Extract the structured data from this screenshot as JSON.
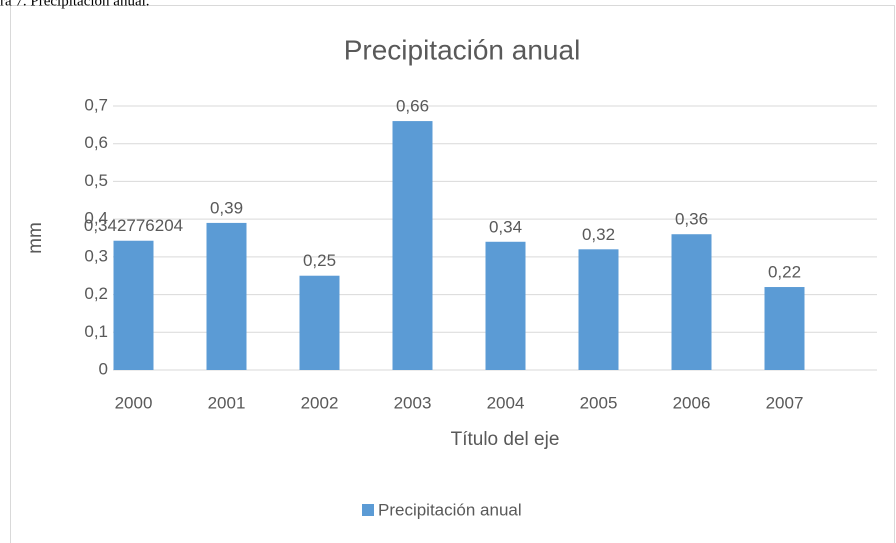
{
  "caption": "ra 7. Precipitación anual.",
  "chart_data": {
    "type": "bar",
    "title": "Precipitación anual",
    "x_label": "Título del eje",
    "y_label": "mm",
    "categories": [
      "2000",
      "2001",
      "2002",
      "2003",
      "2004",
      "2005",
      "2006",
      "2007"
    ],
    "series": [
      {
        "name": "Precipitación anual",
        "color": "#5b9bd5",
        "values": [
          0.342776204,
          0.39,
          0.25,
          0.66,
          0.34,
          0.32,
          0.36,
          0.22
        ],
        "value_labels": [
          "0,342776204",
          "0,39",
          "0,25",
          "0,66",
          "0,34",
          "0,32",
          "0,36",
          "0,22"
        ]
      }
    ],
    "ylim": [
      0,
      0.7
    ],
    "yticks": [
      0,
      {
        "value": 0.1,
        "label": "0,1"
      },
      {
        "value": 0.2,
        "label": "0,2"
      },
      {
        "value": 0.3,
        "label": "0,3"
      },
      {
        "value": 0.4,
        "label": "0,4"
      },
      {
        "value": 0.5,
        "label": "0,5"
      },
      {
        "value": 0.6,
        "label": "0,6"
      },
      {
        "value": 0.7,
        "label": "0,7"
      }
    ],
    "grid": true,
    "legend": "bottom"
  }
}
